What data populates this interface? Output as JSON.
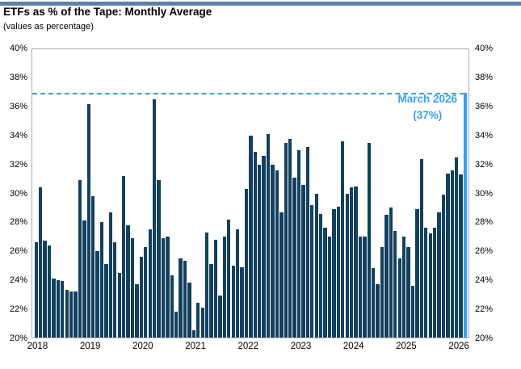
{
  "page": {
    "top_strip_color": "#5C80A8",
    "background": "#FFFFFF"
  },
  "header": {
    "title": "ETFs as % of the Tape: Monthly Average",
    "subtitle": "(values as percentage)"
  },
  "annotation": {
    "line1": "March 2026",
    "line2": "(37%)",
    "color": "#3AA0F0"
  },
  "chart_data": {
    "type": "bar",
    "title": "ETFs as % of the Tape: Monthly Average",
    "subtitle": "(values as percentage)",
    "unit": "percent of tape",
    "ylim": [
      20,
      40
    ],
    "ytick_step": 2,
    "yticks": [
      "40%",
      "38%",
      "36%",
      "34%",
      "32%",
      "30%",
      "28%",
      "26%",
      "24%",
      "22%",
      "20%"
    ],
    "axis_labels_both_sides": true,
    "grid": false,
    "bar_color": "#13405F",
    "plot_border_color": "#ABABAB",
    "years": [
      2018,
      2019,
      2020,
      2021,
      2022,
      2023,
      2024,
      2025,
      2026
    ],
    "values_by_year": {
      "2018": [
        26.6,
        30.4,
        26.7,
        26.4,
        24.1,
        24.0,
        23.9,
        23.3,
        23.2,
        23.2,
        30.9,
        28.1
      ],
      "2019": [
        36.2,
        29.8,
        26.0,
        28.0,
        25.1,
        28.7,
        26.6,
        24.5,
        31.2,
        27.8,
        26.9,
        23.7
      ],
      "2020": [
        25.6,
        26.3,
        27.5,
        36.5,
        30.9,
        26.9,
        27.0,
        24.3,
        21.8,
        25.5,
        25.3,
        23.8
      ],
      "2021": [
        20.5,
        22.4,
        22.1,
        27.3,
        25.1,
        26.8,
        22.9,
        27.0,
        28.2,
        25.0,
        27.5,
        24.9
      ],
      "2022": [
        30.3,
        34.0,
        32.9,
        32.0,
        32.6,
        34.1,
        32.0,
        31.6,
        28.7,
        33.5,
        33.8,
        31.1
      ],
      "2023": [
        33.0,
        30.6,
        33.2,
        29.2,
        30.0,
        28.6,
        27.6,
        27.0,
        28.9,
        29.1,
        33.6,
        30.0
      ],
      "2024": [
        30.4,
        30.5,
        27.0,
        27.0,
        33.5,
        24.8,
        23.7,
        26.3,
        28.5,
        29.0,
        27.4,
        25.5
      ],
      "2025": [
        27.0,
        26.3,
        23.6,
        28.9,
        32.4,
        27.6,
        27.2,
        27.6,
        28.7,
        29.9,
        31.4,
        31.6
      ],
      "2026": [
        32.5,
        31.3,
        37.0
      ]
    },
    "highlight": {
      "label": "March 2026",
      "value": 37,
      "color": "#3AA0F0"
    },
    "reference_line": {
      "value": 37,
      "style": "dashed",
      "color": "#3AA0F0"
    },
    "legend": "none"
  }
}
